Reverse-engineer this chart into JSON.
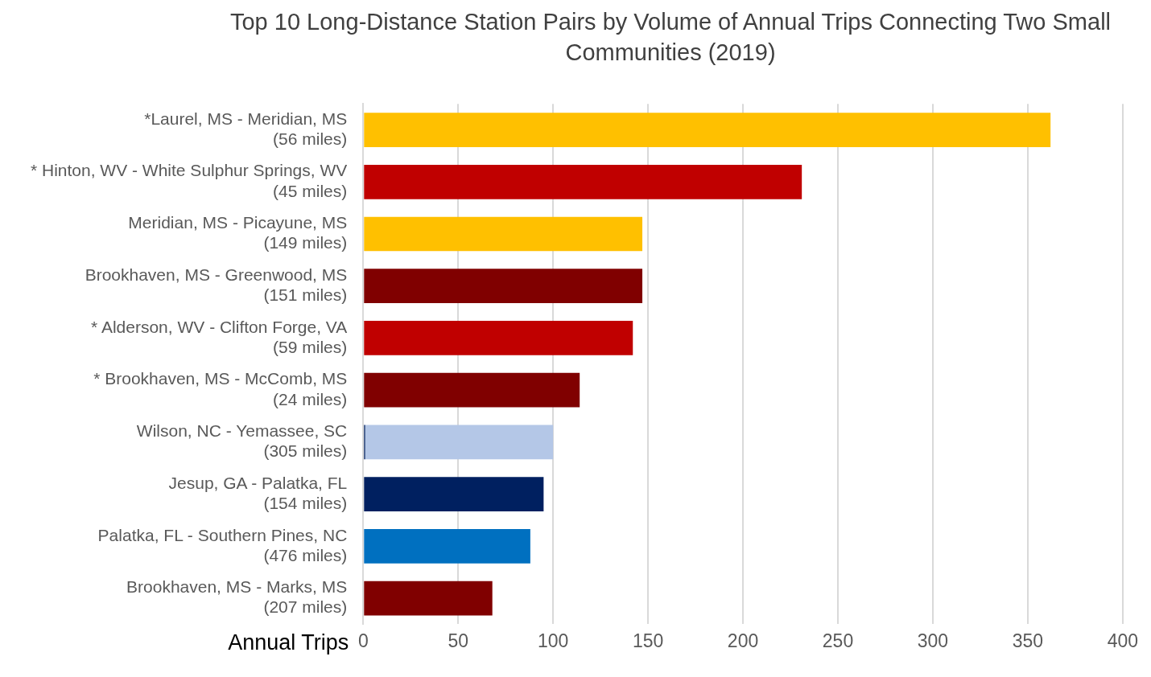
{
  "chart_data": {
    "type": "bar",
    "orientation": "horizontal",
    "stacked": true,
    "title": "Top 10 Long-Distance Station Pairs by Volume of Annual Trips Connecting Two Small Communities (2019)",
    "xlabel": "Annual Trips",
    "categories": [
      "*Laurel, MS - Meridian, MS\n(56 miles)",
      "* Hinton, WV - White Sulphur Springs, WV\n(45 miles)",
      "Meridian, MS - Picayune, MS\n(149 miles)",
      "Brookhaven, MS - Greenwood, MS\n(151 miles)",
      "* Alderson, WV - Clifton Forge, VA\n(59 miles)",
      "* Brookhaven, MS - McComb, MS\n(24 miles)",
      "Wilson, NC - Yemassee, SC\n(305 miles)",
      "Jesup, GA - Palatka, FL\n(154 miles)",
      "Palatka, FL - Southern Pines, NC\n(476 miles)",
      "Brookhaven, MS - Marks, MS\n(207 miles)"
    ],
    "series": [
      {
        "color": "#0070c0",
        "values": [
          null,
          null,
          null,
          null,
          null,
          null,
          null,
          null,
          88,
          null
        ]
      },
      {
        "color": "#c00000",
        "values": [
          null,
          231,
          null,
          null,
          142,
          null,
          null,
          null,
          null,
          null
        ]
      },
      {
        "color": "#002060",
        "values": [
          null,
          null,
          null,
          null,
          null,
          null,
          1,
          95,
          null,
          null
        ]
      },
      {
        "color": "#800000",
        "values": [
          null,
          null,
          null,
          147,
          null,
          114,
          null,
          null,
          null,
          68
        ]
      },
      {
        "color": "#b4c7e7",
        "values": [
          null,
          null,
          null,
          null,
          null,
          null,
          99,
          null,
          null,
          null
        ]
      },
      {
        "color": "#ffc000",
        "values": [
          362,
          null,
          147,
          null,
          null,
          null,
          null,
          null,
          null,
          null
        ]
      }
    ],
    "xlim": [
      0,
      400
    ],
    "xticks": [
      0,
      50,
      100,
      150,
      200,
      250,
      300,
      350,
      400
    ],
    "grid": "x",
    "legend": false
  }
}
